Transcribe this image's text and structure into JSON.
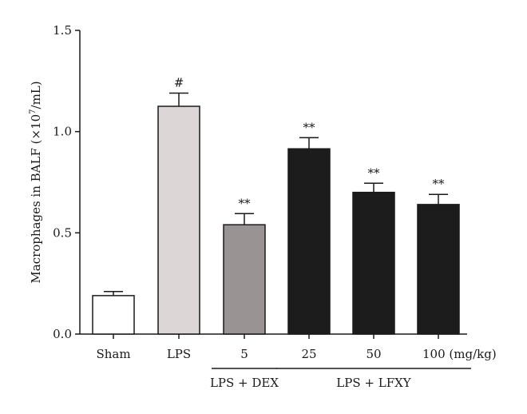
{
  "chart_data": {
    "type": "bar",
    "title": "",
    "ylabel": "Macrophages in BALF (×10",
    "ylabel_sup": "7",
    "ylabel_end": "/mL)",
    "ylim": [
      0,
      1.5
    ],
    "yticks": [
      "0.0",
      "0.5",
      "1.0",
      "1.5"
    ],
    "categories": [
      "Sham",
      "LPS",
      "5",
      "25",
      "50",
      "100 (mg/kg)"
    ],
    "values": [
      0.19,
      1.125,
      0.54,
      0.915,
      0.7,
      0.64
    ],
    "errors": [
      0.02,
      0.065,
      0.055,
      0.055,
      0.045,
      0.05
    ],
    "significance": [
      "",
      "#",
      "**",
      "**",
      "**",
      "**"
    ],
    "bar_colors": [
      "#ffffff",
      "#dcd6d6",
      "#9a9393",
      "#1c1c1c",
      "#1c1c1c",
      "#1c1c1c"
    ],
    "groups": [
      {
        "label": "LPS + DEX",
        "from": 2,
        "to": 2
      },
      {
        "label": "LPS + LFXY",
        "from": 3,
        "to": 5
      }
    ]
  }
}
